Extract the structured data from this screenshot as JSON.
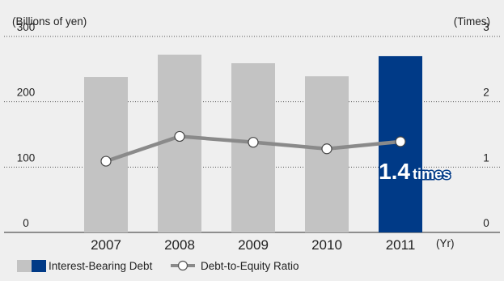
{
  "colors": {
    "background": "#efefef",
    "bar_gray": "#c3c3c3",
    "bar_highlight": "#003a87",
    "line": "#8a8a8a",
    "marker_fill": "#ffffff",
    "text": "#222222",
    "grid": "#555555"
  },
  "chart_data": {
    "type": "bar",
    "categories": [
      "2007",
      "2008",
      "2009",
      "2010",
      "2011"
    ],
    "x_unit": "(Yr)",
    "left_axis": {
      "label": "(Billions of yen)",
      "ticks": [
        "0",
        "100",
        "200",
        "300"
      ],
      "range": [
        0,
        300
      ]
    },
    "right_axis": {
      "label": "(Times)",
      "ticks": [
        "0",
        "1",
        "2",
        "3"
      ],
      "range": [
        0,
        3
      ]
    },
    "series": [
      {
        "name": "Interest-Bearing Debt",
        "type": "bar",
        "axis": "left",
        "values": [
          238,
          272,
          259,
          239,
          270
        ]
      },
      {
        "name": "Debt-to-Equity Ratio",
        "type": "line",
        "axis": "right",
        "values": [
          1.09,
          1.47,
          1.38,
          1.28,
          1.39
        ]
      }
    ],
    "highlight_index": 4,
    "annotation": {
      "value": "1.4",
      "unit": "times"
    },
    "grid": "dotted horizontal",
    "legend_position": "bottom-left"
  }
}
